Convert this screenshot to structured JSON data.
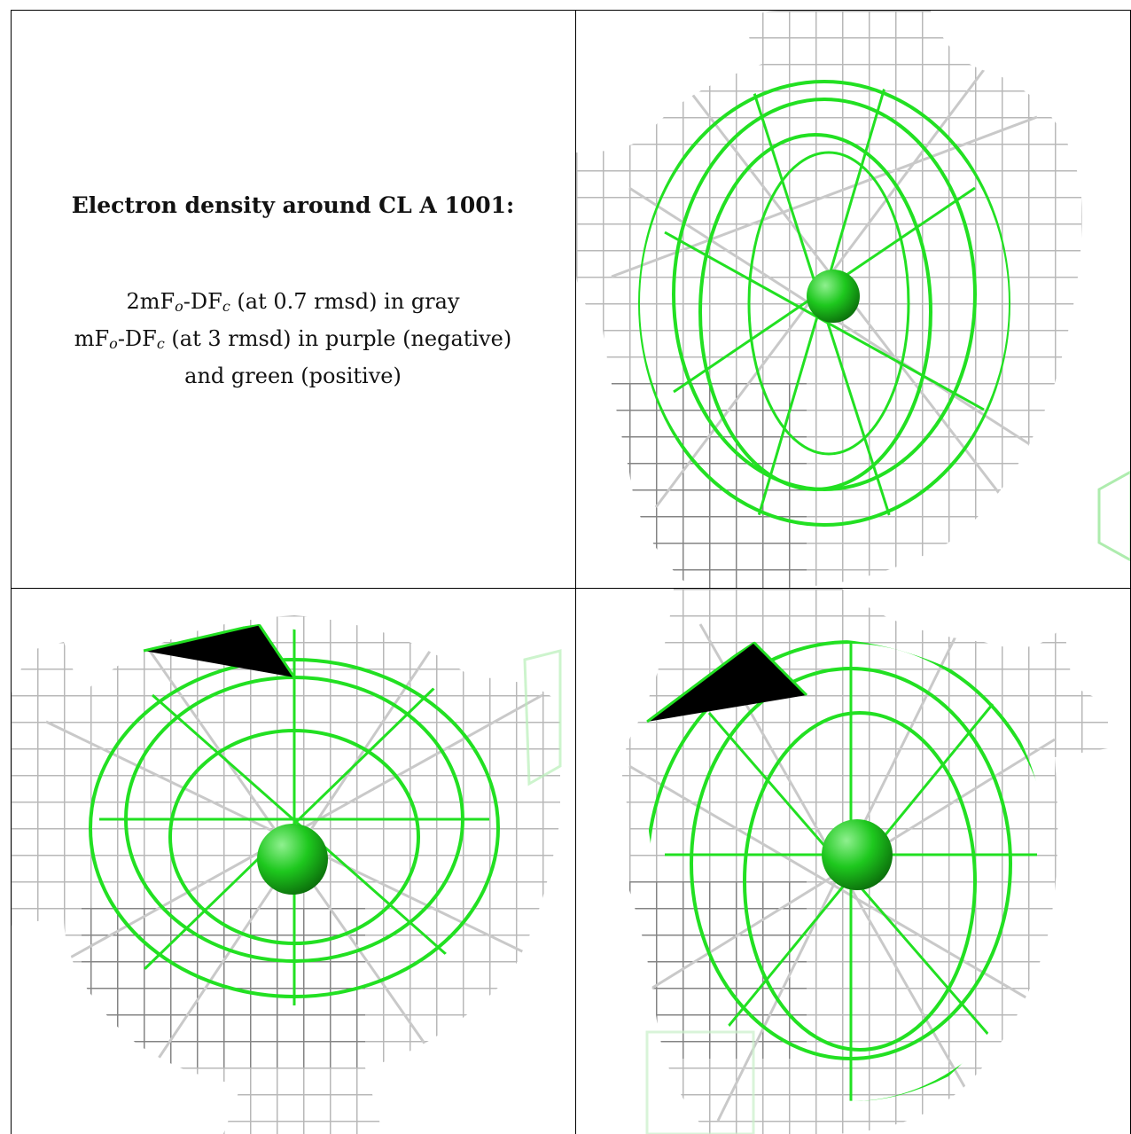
{
  "caption": {
    "title": "Electron density around CL A 1001:",
    "line1": {
      "a": "2mF",
      "b": "o",
      "c": "-DF",
      "d": "c",
      "e": " (at 0.7 rmsd) in gray"
    },
    "line2": {
      "a": "mF",
      "b": "o",
      "c": "-DF",
      "d": "c",
      "e": " (at 3 rmsd) in purple (negative)"
    },
    "line3": "and green (positive)"
  },
  "colors": {
    "gray_mesh": "#b8b8b8",
    "dark_mesh": "#555555",
    "green_mesh": "#22e022",
    "atom_sphere": "#1ec81e"
  },
  "panels": [
    {
      "name": "view-1",
      "atom": "CL A 1001"
    },
    {
      "name": "view-2",
      "atom": "CL A 1001"
    },
    {
      "name": "view-3",
      "atom": "CL A 1001"
    }
  ]
}
